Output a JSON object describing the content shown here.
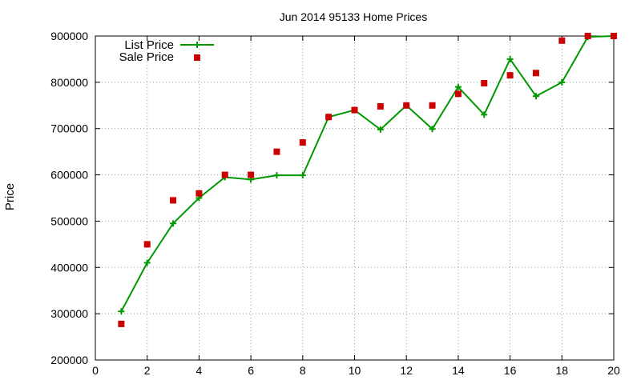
{
  "chart_data": {
    "type": "line",
    "title": "Jun 2014 95133 Home Prices",
    "xlabel": "",
    "ylabel": "Price",
    "xlim": [
      0,
      20
    ],
    "ylim": [
      200000,
      900000
    ],
    "xticks": [
      0,
      2,
      4,
      6,
      8,
      10,
      12,
      14,
      16,
      18,
      20
    ],
    "yticks": [
      200000,
      300000,
      400000,
      500000,
      600000,
      700000,
      800000,
      900000
    ],
    "grid": true,
    "legend_position": "top-left",
    "series": [
      {
        "name": "List Price",
        "style": "line-plus",
        "color": "#009900",
        "x": [
          1,
          2,
          3,
          4,
          5,
          6,
          7,
          8,
          9,
          10,
          11,
          12,
          13,
          14,
          15,
          16,
          17,
          18,
          19,
          20
        ],
        "y": [
          305000,
          410000,
          495000,
          550000,
          595000,
          590000,
          599000,
          599000,
          725000,
          740000,
          698000,
          750000,
          699000,
          790000,
          730000,
          850000,
          770000,
          800000,
          898000,
          900000
        ]
      },
      {
        "name": "Sale Price",
        "style": "square",
        "color": "#cc0000",
        "x": [
          1,
          2,
          3,
          4,
          5,
          6,
          7,
          8,
          9,
          10,
          11,
          12,
          13,
          14,
          15,
          16,
          17,
          18,
          19,
          20
        ],
        "y": [
          278000,
          450000,
          545000,
          560000,
          600000,
          600000,
          650000,
          670000,
          725000,
          740000,
          748000,
          750000,
          750000,
          775000,
          798000,
          815000,
          820000,
          890000,
          900000,
          900000
        ]
      }
    ]
  }
}
